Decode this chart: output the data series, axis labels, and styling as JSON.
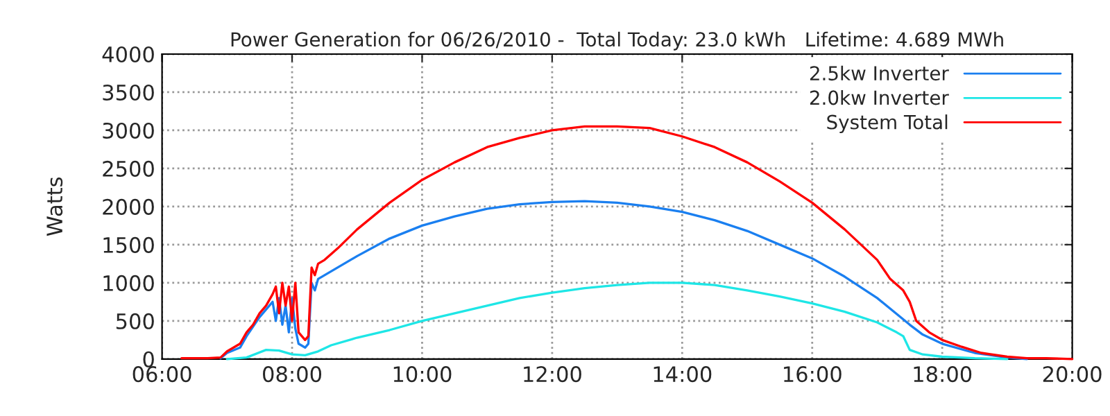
{
  "chart_data": {
    "type": "line",
    "title": "Power Generation for 06/26/2010 -  Total Today: 23.0 kWh   Lifetime: 4.689 MWh",
    "ylabel": "Watts",
    "xlim": [
      6,
      20
    ],
    "xticks": [
      {
        "value": 6,
        "label": "06:00"
      },
      {
        "value": 8,
        "label": "08:00"
      },
      {
        "value": 10,
        "label": "10:00"
      },
      {
        "value": 12,
        "label": "12:00"
      },
      {
        "value": 14,
        "label": "14:00"
      },
      {
        "value": 16,
        "label": "16:00"
      },
      {
        "value": 18,
        "label": "18:00"
      },
      {
        "value": 20,
        "label": "20:00"
      }
    ],
    "ylim": [
      0,
      4000
    ],
    "yticks": [
      0,
      500,
      1000,
      1500,
      2000,
      2500,
      3000,
      3500,
      4000
    ],
    "grid": true,
    "legend": "top right",
    "line_style": "solid",
    "marker": "none",
    "series": [
      {
        "name": "2.5kw Inverter",
        "color": "#1a7ff0",
        "x": [
          6.9,
          7.0,
          7.2,
          7.3,
          7.5,
          7.6,
          7.7,
          7.75,
          7.8,
          7.85,
          7.9,
          7.95,
          8.0,
          8.05,
          8.1,
          8.2,
          8.25,
          8.3,
          8.35,
          8.4,
          8.5,
          9.0,
          9.5,
          10.0,
          10.5,
          11.0,
          11.5,
          12.0,
          12.5,
          13.0,
          13.5,
          14.0,
          14.5,
          15.0,
          15.5,
          16.0,
          16.5,
          17.0,
          17.5,
          17.7,
          18.0,
          18.5,
          19.0,
          19.3
        ],
        "values": [
          10,
          80,
          150,
          300,
          550,
          650,
          750,
          500,
          800,
          450,
          700,
          350,
          800,
          400,
          200,
          150,
          200,
          1000,
          900,
          1050,
          1100,
          1350,
          1580,
          1750,
          1870,
          1970,
          2030,
          2060,
          2070,
          2050,
          2000,
          1930,
          1820,
          1680,
          1500,
          1320,
          1080,
          800,
          450,
          320,
          200,
          80,
          20,
          0
        ]
      },
      {
        "name": "2.0kw Inverter",
        "color": "#1ee6e6",
        "x": [
          7.0,
          7.3,
          7.6,
          7.8,
          8.0,
          8.2,
          8.4,
          8.6,
          9.0,
          9.5,
          10.0,
          10.5,
          11.0,
          11.5,
          12.0,
          12.5,
          13.0,
          13.5,
          14.0,
          14.5,
          15.0,
          15.5,
          16.0,
          16.5,
          17.0,
          17.3,
          17.4,
          17.5,
          17.7,
          18.0,
          18.5,
          19.0
        ],
        "values": [
          0,
          20,
          120,
          110,
          60,
          50,
          100,
          180,
          280,
          380,
          500,
          600,
          700,
          800,
          870,
          930,
          970,
          1000,
          1000,
          970,
          900,
          820,
          730,
          620,
          480,
          350,
          300,
          120,
          60,
          30,
          10,
          0
        ]
      },
      {
        "name": "System Total",
        "color": "#ff0000",
        "x": [
          6.3,
          6.5,
          6.7,
          6.9,
          7.0,
          7.1,
          7.2,
          7.3,
          7.4,
          7.5,
          7.6,
          7.7,
          7.75,
          7.8,
          7.85,
          7.9,
          7.95,
          8.0,
          8.05,
          8.1,
          8.15,
          8.2,
          8.25,
          8.3,
          8.35,
          8.4,
          8.5,
          8.7,
          9.0,
          9.5,
          10.0,
          10.5,
          11.0,
          11.5,
          12.0,
          12.5,
          13.0,
          13.5,
          14.0,
          14.5,
          15.0,
          15.5,
          16.0,
          16.5,
          17.0,
          17.2,
          17.4,
          17.5,
          17.6,
          17.8,
          18.0,
          18.3,
          18.6,
          19.0,
          19.3,
          19.6,
          20.0
        ],
        "values": [
          10,
          10,
          10,
          20,
          100,
          150,
          200,
          350,
          450,
          600,
          700,
          850,
          950,
          600,
          1000,
          700,
          950,
          500,
          1000,
          350,
          300,
          250,
          300,
          1200,
          1100,
          1250,
          1300,
          1450,
          1700,
          2050,
          2350,
          2580,
          2780,
          2900,
          3000,
          3050,
          3050,
          3030,
          2920,
          2780,
          2580,
          2330,
          2050,
          1700,
          1300,
          1050,
          900,
          750,
          500,
          350,
          250,
          160,
          80,
          30,
          10,
          10,
          0
        ]
      }
    ]
  }
}
